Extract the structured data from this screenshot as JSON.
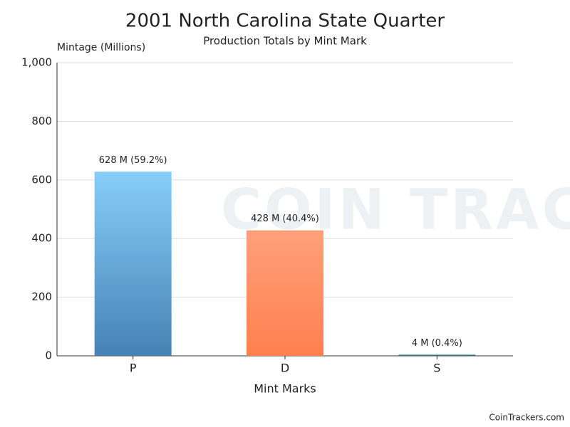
{
  "chart_data": {
    "type": "bar",
    "title": "2001 North Carolina State Quarter",
    "subtitle": "Production Totals by Mint Mark",
    "y_axis_label": "Mintage (Millions)",
    "x_axis_label": "Mint Marks",
    "categories": [
      "P",
      "D",
      "S"
    ],
    "values": [
      628,
      428,
      4
    ],
    "value_labels": [
      "628 M (59.2%)",
      "428 M (40.4%)",
      "4 M (0.4%)"
    ],
    "colors": [
      [
        "#87CEFA",
        "#4682B4"
      ],
      [
        "#FFA07A",
        "#FF7F50"
      ],
      [
        "#3E8E8E",
        "#2E6B6B"
      ]
    ],
    "ylim": [
      0,
      1000
    ],
    "yticks": [
      0,
      200,
      400,
      600,
      800,
      {
        "value": 1000,
        "label": "1,000"
      }
    ],
    "grid": true,
    "watermark": "COIN TRACKERS",
    "credit": "CoinTrackers.com"
  }
}
